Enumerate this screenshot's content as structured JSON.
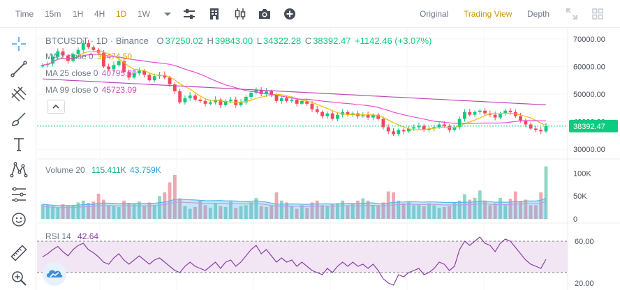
{
  "toolbar": {
    "time_label": "Time",
    "intervals": [
      "15m",
      "1H",
      "4H",
      "1D",
      "1W"
    ],
    "active_interval": "1D",
    "views": [
      "Original",
      "Trading View",
      "Depth"
    ],
    "active_view": "Trading View"
  },
  "legend": {
    "symbol": "BTCUSDT · 1D · Binance",
    "open_label": "O",
    "open": "37250.02",
    "high_label": "H",
    "high": "39843.00",
    "low_label": "L",
    "low": "34322.28",
    "close_label": "C",
    "close": "38392.47",
    "change": "+1142.46 (+3.07%)",
    "ma7_label": "MA 7 close 0",
    "ma7_value": "38474.50",
    "ma25_label": "MA 25 close 0",
    "ma25_value": "40795.80",
    "ma99_label": "MA 99 close 0",
    "ma99_value": "45723.09",
    "volume_label": "Volume 20",
    "volume_v1": "115.411K",
    "volume_v2": "43.759K",
    "rsi_label": "RSI 14",
    "rsi_value": "42.64"
  },
  "colors": {
    "up": "#0ecb81",
    "down": "#f6465d",
    "ma7": "#f0b90b",
    "ma25": "#e84fd0",
    "ma99": "#c048b8",
    "vol_up": "#90d6c4",
    "vol_down": "#f1a7b0",
    "vol_ma1": "#55b8e8",
    "vol_ma2": "#b9a0e0",
    "rsi_line": "#8b3da6",
    "rsi_band": "#f2e6f5",
    "accent": "#c99400"
  },
  "icons": {
    "top": [
      "chevron-down-icon",
      "settings-sliders-icon",
      "building-icon",
      "candles-icon",
      "camera-icon",
      "plus-circle-icon",
      "expand-icon",
      "grid-icon"
    ],
    "left": [
      "crosshair-icon",
      "trend-line-icon",
      "pitchfork-icon",
      "brush-icon",
      "text-icon",
      "pattern-icon",
      "fib-icon",
      "emoji-icon",
      "ruler-icon",
      "zoom-in-icon"
    ]
  },
  "price_axis": {
    "ticks": [
      "70000.00",
      "60000.00",
      "50000.00",
      "40000.00",
      "30000.00"
    ],
    "current_price": "38392.47"
  },
  "volume_axis": {
    "ticks": [
      "100K",
      "50K",
      "0"
    ]
  },
  "rsi_axis": {
    "ticks": [
      "60.00",
      "20.00"
    ]
  },
  "chart_data": {
    "type": "candlestick",
    "y_range": [
      27000,
      74000
    ],
    "closes": [
      60500,
      61000,
      63500,
      65500,
      64000,
      62000,
      64500,
      66000,
      68500,
      67000,
      66000,
      65000,
      60000,
      59000,
      60500,
      62000,
      58000,
      56000,
      57500,
      58500,
      57000,
      55000,
      56500,
      57000,
      56000,
      53500,
      51000,
      47000,
      48500,
      49500,
      48000,
      47500,
      46500,
      47000,
      48000,
      46000,
      47500,
      48000,
      46000,
      47000,
      49000,
      50500,
      51500,
      50000,
      51000,
      49500,
      47500,
      48500,
      47500,
      48000,
      46500,
      47500,
      46500,
      44500,
      43500,
      42000,
      43000,
      41000,
      42500,
      43500,
      42500,
      43000,
      42000,
      42500,
      41500,
      42500,
      41000,
      38000,
      36500,
      35500,
      37000,
      36500,
      37500,
      38000,
      38500,
      37000,
      37500,
      38000,
      39000,
      38500,
      37000,
      38000,
      41000,
      43500,
      42500,
      43500,
      44000,
      43000,
      42500,
      41500,
      43000,
      44000,
      43500,
      42000,
      40500,
      39000,
      37500,
      37000,
      36500,
      38392
    ],
    "volume_k": [
      32,
      30,
      28,
      25,
      32,
      28,
      30,
      36,
      40,
      35,
      38,
      55,
      42,
      30,
      28,
      26,
      40,
      35,
      32,
      38,
      28,
      36,
      30,
      50,
      58,
      80,
      96,
      45,
      28,
      22,
      26,
      40,
      30,
      24,
      35,
      28,
      26,
      38,
      24,
      28,
      30,
      36,
      46,
      28,
      26,
      30,
      58,
      40,
      36,
      28,
      22,
      30,
      24,
      36,
      40,
      30,
      28,
      32,
      34,
      40,
      30,
      34,
      40,
      45,
      40,
      30,
      30,
      36,
      60,
      58,
      40,
      34,
      38,
      30,
      32,
      28,
      34,
      30,
      24,
      26,
      28,
      36,
      40,
      54,
      42,
      46,
      62,
      40,
      30,
      34,
      46,
      30,
      44,
      60,
      38,
      42,
      30,
      30,
      58,
      115
    ],
    "rsi": [
      45,
      48,
      52,
      55,
      50,
      46,
      52,
      56,
      58,
      52,
      49,
      45,
      40,
      38,
      44,
      48,
      42,
      38,
      42,
      46,
      42,
      38,
      42,
      44,
      40,
      36,
      32,
      30,
      36,
      40,
      36,
      34,
      32,
      36,
      40,
      34,
      40,
      42,
      36,
      40,
      46,
      52,
      56,
      48,
      52,
      46,
      40,
      44,
      40,
      42,
      36,
      40,
      36,
      32,
      30,
      28,
      34,
      30,
      36,
      40,
      36,
      40,
      36,
      38,
      34,
      38,
      32,
      24,
      20,
      18,
      28,
      26,
      30,
      32,
      34,
      28,
      30,
      34,
      40,
      38,
      32,
      36,
      52,
      60,
      56,
      60,
      64,
      58,
      56,
      50,
      58,
      62,
      60,
      54,
      48,
      42,
      38,
      36,
      34,
      42.64
    ]
  }
}
